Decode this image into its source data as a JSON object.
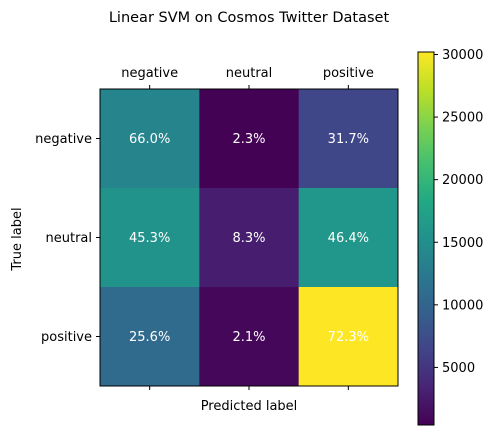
{
  "chart_data": {
    "type": "heatmap",
    "title": "Linear SVM on Cosmos Twitter Dataset",
    "xlabel": "Predicted label",
    "ylabel": "True label",
    "x_categories": [
      "negative",
      "neutral",
      "positive"
    ],
    "y_categories": [
      "negative",
      "neutral",
      "positive"
    ],
    "cell_labels": [
      [
        "66.0%",
        "2.3%",
        "31.7%"
      ],
      [
        "45.3%",
        "8.3%",
        "46.4%"
      ],
      [
        "25.6%",
        "2.1%",
        "72.3%"
      ]
    ],
    "percent_values": [
      [
        66.0,
        2.3,
        31.7
      ],
      [
        45.3,
        8.3,
        46.4
      ],
      [
        25.6,
        2.1,
        72.3
      ]
    ],
    "count_values": [
      [
        13800,
        480,
        6650
      ],
      [
        15600,
        2850,
        16000
      ],
      [
        10700,
        880,
        30200
      ]
    ],
    "colorbar": {
      "colormap": "viridis",
      "range": [
        400,
        30200
      ],
      "ticks": [
        5000,
        10000,
        15000,
        20000,
        25000,
        30000
      ],
      "tick_labels": [
        "5000",
        "10000",
        "15000",
        "20000",
        "25000",
        "30000"
      ]
    },
    "text_color_dark_cells": "#ffffff",
    "grid": false
  }
}
